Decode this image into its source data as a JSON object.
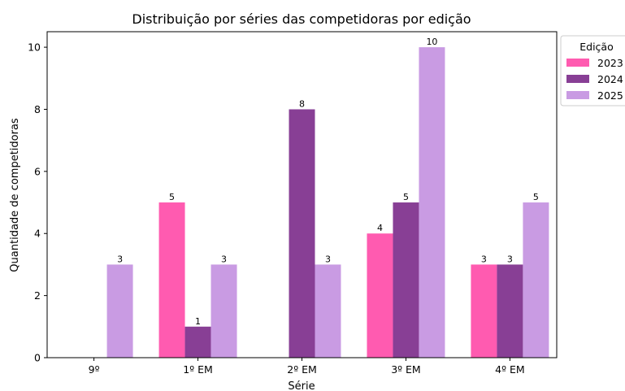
{
  "chart_data": {
    "type": "bar",
    "title": "Distribuição por séries das competidoras por edição",
    "xlabel": "Série",
    "ylabel": "Quantidade de competidoras",
    "categories": [
      "9º",
      "1º EM",
      "2º EM",
      "3º EM",
      "4º EM"
    ],
    "ylim": [
      0,
      10.5
    ],
    "yticks": [
      0,
      2,
      4,
      6,
      8,
      10
    ],
    "grid": false,
    "legend": {
      "title": "Edição",
      "placement": "top-right-outside"
    },
    "series": [
      {
        "name": "2023",
        "color": "#ff5bb0",
        "values": [
          0,
          5,
          0,
          4,
          3
        ],
        "labels": [
          "",
          "5",
          "",
          "4",
          "3"
        ]
      },
      {
        "name": "2024",
        "color": "#883f95",
        "values": [
          0,
          1,
          8,
          5,
          3
        ],
        "labels": [
          "",
          "1",
          "8",
          "5",
          "3"
        ]
      },
      {
        "name": "2025",
        "color": "#c99be3",
        "values": [
          3,
          3,
          3,
          10,
          5
        ],
        "labels": [
          "3",
          "3",
          "3",
          "10",
          "5"
        ]
      }
    ]
  }
}
